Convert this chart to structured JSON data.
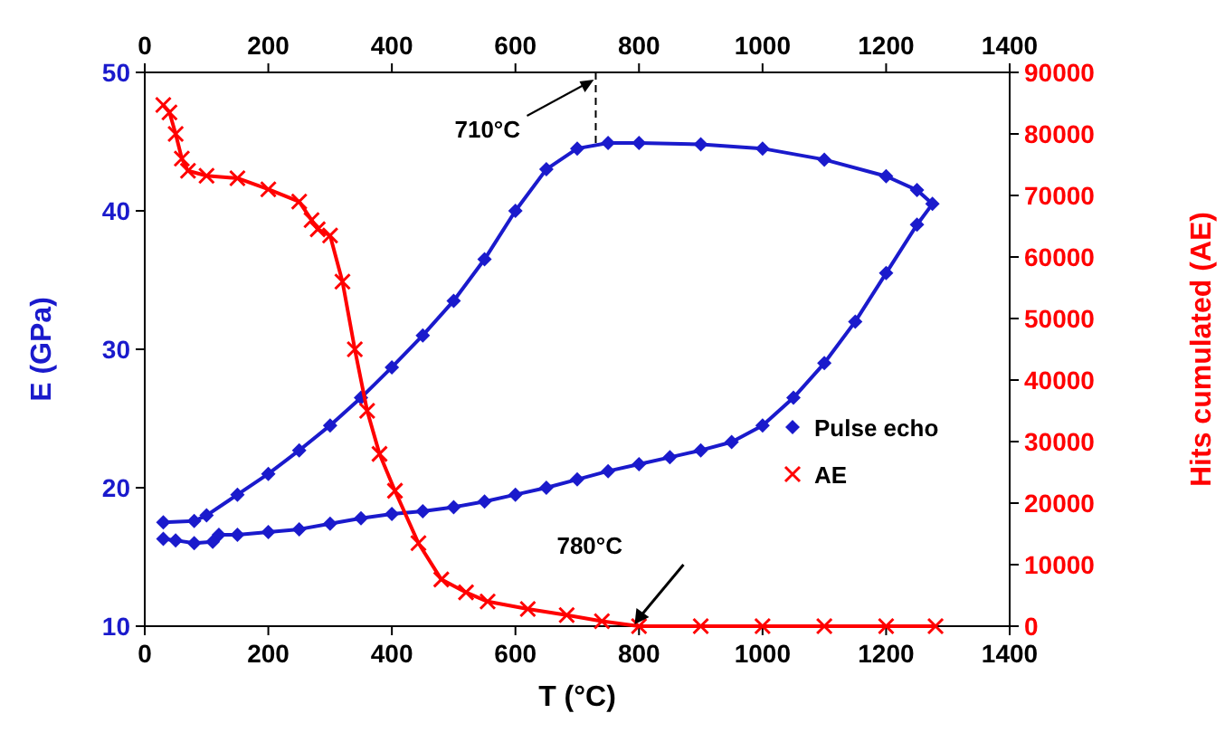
{
  "chart_data": {
    "type": "line",
    "xlabel": "T (°C)",
    "ylabel": "E (GPa)",
    "y2label": "Hits cumulated (AE)",
    "xlim": [
      0,
      1400
    ],
    "xticks": [
      0,
      200,
      400,
      600,
      800,
      1000,
      1200,
      1400
    ],
    "x2lim": [
      0,
      1400
    ],
    "x2ticks": [
      0,
      200,
      400,
      600,
      800,
      1000,
      1200,
      1400
    ],
    "ylim": [
      10,
      50
    ],
    "yticks": [
      10,
      20,
      30,
      40,
      50
    ],
    "y2lim": [
      0,
      90000
    ],
    "y2ticks": [
      0,
      10000,
      20000,
      30000,
      40000,
      50000,
      60000,
      70000,
      80000,
      90000
    ],
    "legend": "bottom right",
    "grid": false,
    "ref_lines": [
      {
        "axis": "x",
        "value": 730,
        "label": "710°C",
        "line_style": "dashed",
        "color": "#000000"
      }
    ],
    "annotations": [
      {
        "text": "780°C",
        "x": 790,
        "y": 10
      }
    ],
    "series": [
      {
        "name": "Pulse echo",
        "color": "#1a1acc",
        "marker": "diamond",
        "x": [
          30,
          80,
          100,
          150,
          200,
          250,
          300,
          350,
          400,
          450,
          500,
          550,
          600,
          650,
          700,
          750,
          800,
          900,
          1000,
          1100,
          1200,
          1250,
          1275,
          1250,
          1200,
          1150,
          1100,
          1050,
          1000,
          950,
          900,
          850,
          800,
          750,
          700,
          650,
          600,
          550,
          500,
          450,
          400,
          350,
          300,
          250,
          200,
          150,
          120,
          110,
          80,
          50,
          30
        ],
        "values": [
          17.5,
          17.6,
          18,
          19.5,
          21,
          22.7,
          24.5,
          26.5,
          28.7,
          31,
          33.5,
          36.5,
          40,
          43,
          44.5,
          44.9,
          44.9,
          44.8,
          44.5,
          43.7,
          42.5,
          41.5,
          40.5,
          39,
          35.5,
          32,
          29,
          26.5,
          24.5,
          23.3,
          22.7,
          22.2,
          21.7,
          21.2,
          20.6,
          20,
          19.5,
          19,
          18.6,
          18.3,
          18.1,
          17.8,
          17.4,
          17,
          16.8,
          16.6,
          16.6,
          16.1,
          16,
          16.2,
          16.3
        ]
      },
      {
        "name": "AE",
        "color": "#ff0000",
        "marker": "cross",
        "axis": "y2",
        "x": [
          30,
          40,
          50,
          60,
          70,
          100,
          150,
          200,
          250,
          270,
          280,
          300,
          320,
          340,
          360,
          380,
          405,
          443,
          480,
          520,
          555,
          620,
          683,
          740,
          800,
          900,
          1000,
          1100,
          1200,
          1280
        ],
        "values": [
          84700,
          83500,
          80000,
          76000,
          74000,
          73200,
          72800,
          71000,
          69000,
          66000,
          64500,
          63500,
          56000,
          45000,
          35000,
          28000,
          22000,
          13500,
          7600,
          5500,
          4000,
          2800,
          1800,
          800,
          0,
          0,
          0,
          0,
          0,
          0
        ]
      }
    ]
  }
}
